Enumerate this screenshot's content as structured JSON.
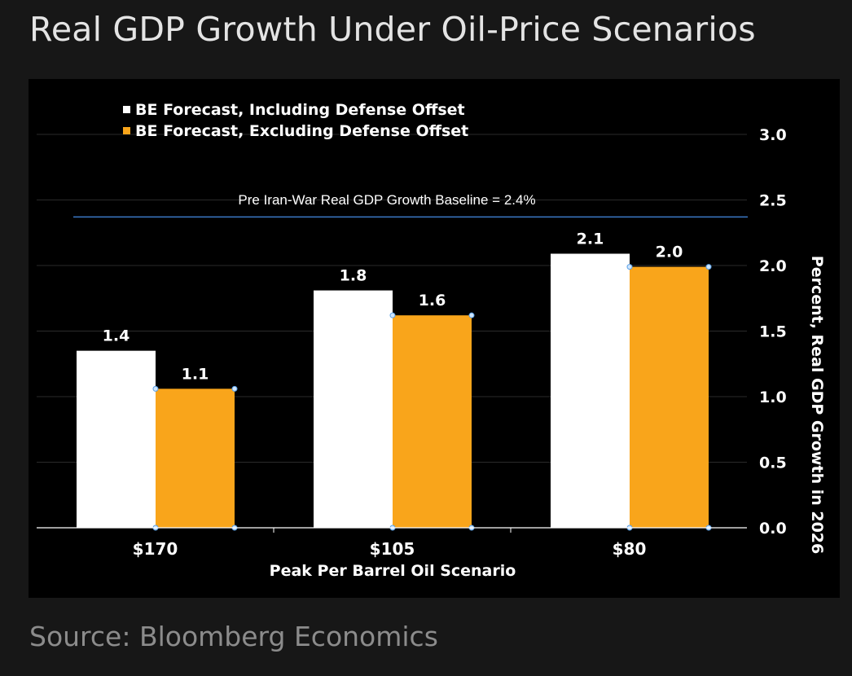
{
  "title": "Real GDP Growth Under Oil-Price Scenarios",
  "source": "Source: Bloomberg Economics",
  "chart_data": {
    "type": "bar",
    "xlabel": "Peak Per Barrel Oil Scenario",
    "ylabel": "Percent, Real GDP Growth in 2026",
    "ylim": [
      0,
      3.0
    ],
    "yticks": [
      0,
      0.5,
      1.0,
      1.5,
      2.0,
      2.5,
      3.0
    ],
    "ytick_labels": [
      "0.0",
      "0.5",
      "1.0",
      "1.5",
      "2.0",
      "2.5",
      "3.0"
    ],
    "y_axis_position": "right",
    "grid": true,
    "legend_position": "top-left",
    "categories": [
      "$170",
      "$105",
      "$80"
    ],
    "series": [
      {
        "name": "BE Forecast, Including Defense Offset",
        "color": "#ffffff",
        "values": [
          1.35,
          1.81,
          2.09
        ],
        "labels": [
          "1.4",
          "1.8",
          "2.1"
        ]
      },
      {
        "name": "BE Forecast, Excluding Defense Offset",
        "color": "#f9a51b",
        "values": [
          1.06,
          1.62,
          1.99
        ],
        "labels": [
          "1.1",
          "1.6",
          "2.0"
        ]
      }
    ],
    "reference_line": {
      "value": 2.37,
      "label": "Pre Iran-War Real GDP Growth Baseline = 2.4%",
      "color": "#3a78c6"
    },
    "colors": {
      "background": "#000000",
      "grid": "#2a2a2a",
      "axis": "#ffffff",
      "text": "#ffffff"
    }
  }
}
